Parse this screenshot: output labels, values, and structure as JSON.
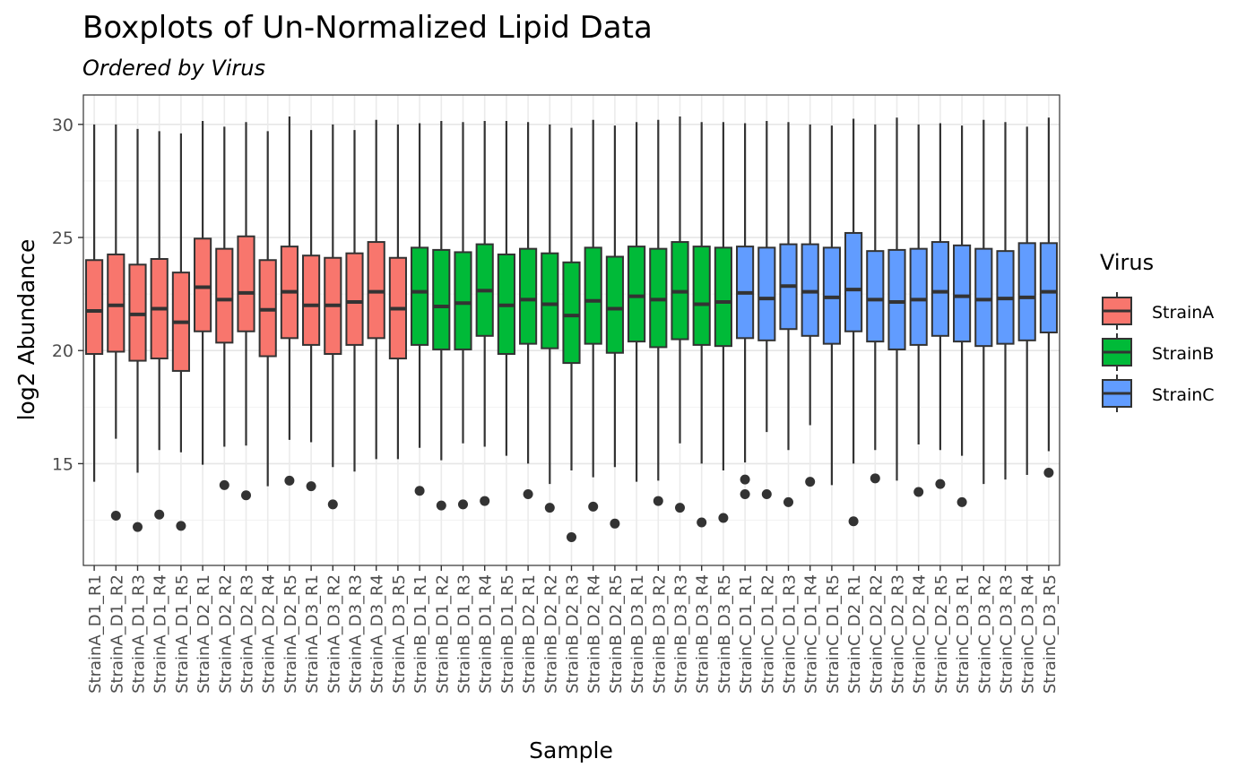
{
  "chart_data": {
    "type": "boxplot",
    "title": "Boxplots of Un-Normalized Lipid Data",
    "subtitle": "Ordered by  Virus",
    "xlabel": "Sample",
    "ylabel": "log2 Abundance",
    "ylim": [
      10.5,
      31.3
    ],
    "y_ticks": [
      15,
      20,
      25,
      30
    ],
    "grid": true,
    "legend": {
      "title": "Virus",
      "position": "right",
      "entries": [
        {
          "name": "StrainA",
          "color": "#F8766D"
        },
        {
          "name": "StrainB",
          "color": "#00BA38"
        },
        {
          "name": "StrainC",
          "color": "#619CFF"
        }
      ]
    },
    "samples": [
      {
        "label": "StrainA_D1_R1",
        "group": "StrainA",
        "whisker_low": 14.2,
        "q1": 19.85,
        "median": 21.75,
        "q3": 24.0,
        "whisker_high": 30.0,
        "outliers": []
      },
      {
        "label": "StrainA_D1_R2",
        "group": "StrainA",
        "whisker_low": 16.1,
        "q1": 19.95,
        "median": 22.0,
        "q3": 24.25,
        "whisker_high": 30.0,
        "outliers": [
          12.7
        ]
      },
      {
        "label": "StrainA_D1_R3",
        "group": "StrainA",
        "whisker_low": 14.6,
        "q1": 19.55,
        "median": 21.6,
        "q3": 23.8,
        "whisker_high": 29.8,
        "outliers": [
          12.2
        ]
      },
      {
        "label": "StrainA_D1_R4",
        "group": "StrainA",
        "whisker_low": 15.6,
        "q1": 19.65,
        "median": 21.85,
        "q3": 24.05,
        "whisker_high": 29.7,
        "outliers": [
          12.75
        ]
      },
      {
        "label": "StrainA_D1_R5",
        "group": "StrainA",
        "whisker_low": 15.5,
        "q1": 19.1,
        "median": 21.25,
        "q3": 23.45,
        "whisker_high": 29.6,
        "outliers": [
          12.25
        ]
      },
      {
        "label": "StrainA_D2_R1",
        "group": "StrainA",
        "whisker_low": 14.95,
        "q1": 20.85,
        "median": 22.8,
        "q3": 24.95,
        "whisker_high": 30.15,
        "outliers": []
      },
      {
        "label": "StrainA_D2_R2",
        "group": "StrainA",
        "whisker_low": 15.75,
        "q1": 20.35,
        "median": 22.25,
        "q3": 24.5,
        "whisker_high": 29.9,
        "outliers": [
          14.05
        ]
      },
      {
        "label": "StrainA_D2_R3",
        "group": "StrainA",
        "whisker_low": 15.8,
        "q1": 20.85,
        "median": 22.55,
        "q3": 25.05,
        "whisker_high": 30.1,
        "outliers": [
          13.6
        ]
      },
      {
        "label": "StrainA_D2_R4",
        "group": "StrainA",
        "whisker_low": 14.0,
        "q1": 19.75,
        "median": 21.8,
        "q3": 24.0,
        "whisker_high": 29.7,
        "outliers": []
      },
      {
        "label": "StrainA_D2_R5",
        "group": "StrainA",
        "whisker_low": 16.05,
        "q1": 20.55,
        "median": 22.6,
        "q3": 24.6,
        "whisker_high": 30.35,
        "outliers": [
          14.25
        ]
      },
      {
        "label": "StrainA_D3_R1",
        "group": "StrainA",
        "whisker_low": 15.95,
        "q1": 20.25,
        "median": 22.0,
        "q3": 24.2,
        "whisker_high": 29.75,
        "outliers": [
          14.0
        ]
      },
      {
        "label": "StrainA_D3_R2",
        "group": "StrainA",
        "whisker_low": 14.85,
        "q1": 19.85,
        "median": 22.0,
        "q3": 24.1,
        "whisker_high": 30.0,
        "outliers": [
          13.2
        ]
      },
      {
        "label": "StrainA_D3_R3",
        "group": "StrainA",
        "whisker_low": 14.65,
        "q1": 20.25,
        "median": 22.15,
        "q3": 24.3,
        "whisker_high": 29.75,
        "outliers": []
      },
      {
        "label": "StrainA_D3_R4",
        "group": "StrainA",
        "whisker_low": 15.2,
        "q1": 20.55,
        "median": 22.6,
        "q3": 24.8,
        "whisker_high": 30.2,
        "outliers": []
      },
      {
        "label": "StrainA_D3_R5",
        "group": "StrainA",
        "whisker_low": 15.2,
        "q1": 19.65,
        "median": 21.85,
        "q3": 24.1,
        "whisker_high": 30.0,
        "outliers": []
      },
      {
        "label": "StrainB_D1_R1",
        "group": "StrainB",
        "whisker_low": 15.7,
        "q1": 20.25,
        "median": 22.6,
        "q3": 24.55,
        "whisker_high": 30.05,
        "outliers": [
          13.8
        ]
      },
      {
        "label": "StrainB_D1_R2",
        "group": "StrainB",
        "whisker_low": 15.15,
        "q1": 20.05,
        "median": 21.95,
        "q3": 24.45,
        "whisker_high": 30.15,
        "outliers": [
          13.15
        ]
      },
      {
        "label": "StrainB_D1_R3",
        "group": "StrainB",
        "whisker_low": 15.9,
        "q1": 20.05,
        "median": 22.1,
        "q3": 24.35,
        "whisker_high": 30.1,
        "outliers": [
          13.2
        ]
      },
      {
        "label": "StrainB_D1_R4",
        "group": "StrainB",
        "whisker_low": 15.75,
        "q1": 20.65,
        "median": 22.65,
        "q3": 24.7,
        "whisker_high": 30.15,
        "outliers": [
          13.35
        ]
      },
      {
        "label": "StrainB_D1_R5",
        "group": "StrainB",
        "whisker_low": 15.35,
        "q1": 19.85,
        "median": 22.0,
        "q3": 24.25,
        "whisker_high": 30.15,
        "outliers": []
      },
      {
        "label": "StrainB_D2_R1",
        "group": "StrainB",
        "whisker_low": 15.0,
        "q1": 20.3,
        "median": 22.25,
        "q3": 24.5,
        "whisker_high": 30.1,
        "outliers": [
          13.65
        ]
      },
      {
        "label": "StrainB_D2_R2",
        "group": "StrainB",
        "whisker_low": 14.1,
        "q1": 20.1,
        "median": 22.05,
        "q3": 24.3,
        "whisker_high": 30.0,
        "outliers": [
          13.05
        ]
      },
      {
        "label": "StrainB_D2_R3",
        "group": "StrainB",
        "whisker_low": 14.7,
        "q1": 19.45,
        "median": 21.55,
        "q3": 23.9,
        "whisker_high": 29.85,
        "outliers": [
          11.75
        ]
      },
      {
        "label": "StrainB_D2_R4",
        "group": "StrainB",
        "whisker_low": 14.4,
        "q1": 20.3,
        "median": 22.2,
        "q3": 24.55,
        "whisker_high": 30.2,
        "outliers": [
          13.1
        ]
      },
      {
        "label": "StrainB_D2_R5",
        "group": "StrainB",
        "whisker_low": 14.85,
        "q1": 19.9,
        "median": 21.85,
        "q3": 24.15,
        "whisker_high": 29.95,
        "outliers": [
          12.35
        ]
      },
      {
        "label": "StrainB_D3_R1",
        "group": "StrainB",
        "whisker_low": 14.2,
        "q1": 20.4,
        "median": 22.4,
        "q3": 24.6,
        "whisker_high": 30.1,
        "outliers": []
      },
      {
        "label": "StrainB_D3_R2",
        "group": "StrainB",
        "whisker_low": 14.25,
        "q1": 20.15,
        "median": 22.25,
        "q3": 24.5,
        "whisker_high": 30.2,
        "outliers": [
          13.35
        ]
      },
      {
        "label": "StrainB_D3_R3",
        "group": "StrainB",
        "whisker_low": 15.9,
        "q1": 20.5,
        "median": 22.6,
        "q3": 24.8,
        "whisker_high": 30.35,
        "outliers": [
          13.05
        ]
      },
      {
        "label": "StrainB_D3_R4",
        "group": "StrainB",
        "whisker_low": 15.0,
        "q1": 20.25,
        "median": 22.05,
        "q3": 24.6,
        "whisker_high": 30.1,
        "outliers": [
          12.4
        ]
      },
      {
        "label": "StrainB_D3_R5",
        "group": "StrainB",
        "whisker_low": 14.7,
        "q1": 20.2,
        "median": 22.15,
        "q3": 24.55,
        "whisker_high": 30.1,
        "outliers": [
          12.6
        ]
      },
      {
        "label": "StrainC_D1_R1",
        "group": "StrainC",
        "whisker_low": 15.05,
        "q1": 20.55,
        "median": 22.55,
        "q3": 24.6,
        "whisker_high": 30.05,
        "outliers": [
          14.3,
          13.65
        ]
      },
      {
        "label": "StrainC_D1_R2",
        "group": "StrainC",
        "whisker_low": 16.4,
        "q1": 20.45,
        "median": 22.3,
        "q3": 24.55,
        "whisker_high": 30.15,
        "outliers": [
          13.65
        ]
      },
      {
        "label": "StrainC_D1_R3",
        "group": "StrainC",
        "whisker_low": 15.6,
        "q1": 20.95,
        "median": 22.85,
        "q3": 24.7,
        "whisker_high": 30.1,
        "outliers": [
          13.3
        ]
      },
      {
        "label": "StrainC_D1_R4",
        "group": "StrainC",
        "whisker_low": 16.7,
        "q1": 20.65,
        "median": 22.6,
        "q3": 24.7,
        "whisker_high": 30.0,
        "outliers": [
          14.2
        ]
      },
      {
        "label": "StrainC_D1_R5",
        "group": "StrainC",
        "whisker_low": 14.05,
        "q1": 20.3,
        "median": 22.35,
        "q3": 24.55,
        "whisker_high": 29.95,
        "outliers": []
      },
      {
        "label": "StrainC_D2_R1",
        "group": "StrainC",
        "whisker_low": 15.0,
        "q1": 20.85,
        "median": 22.7,
        "q3": 25.2,
        "whisker_high": 30.25,
        "outliers": [
          12.45
        ]
      },
      {
        "label": "StrainC_D2_R2",
        "group": "StrainC",
        "whisker_low": 15.6,
        "q1": 20.4,
        "median": 22.25,
        "q3": 24.4,
        "whisker_high": 30.0,
        "outliers": [
          14.35
        ]
      },
      {
        "label": "StrainC_D2_R3",
        "group": "StrainC",
        "whisker_low": 14.25,
        "q1": 20.05,
        "median": 22.15,
        "q3": 24.45,
        "whisker_high": 30.3,
        "outliers": []
      },
      {
        "label": "StrainC_D2_R4",
        "group": "StrainC",
        "whisker_low": 15.85,
        "q1": 20.25,
        "median": 22.25,
        "q3": 24.5,
        "whisker_high": 30.0,
        "outliers": [
          13.75
        ]
      },
      {
        "label": "StrainC_D2_R5",
        "group": "StrainC",
        "whisker_low": 15.6,
        "q1": 20.65,
        "median": 22.6,
        "q3": 24.8,
        "whisker_high": 30.05,
        "outliers": [
          14.1
        ]
      },
      {
        "label": "StrainC_D3_R1",
        "group": "StrainC",
        "whisker_low": 15.35,
        "q1": 20.4,
        "median": 22.4,
        "q3": 24.65,
        "whisker_high": 29.95,
        "outliers": [
          13.3
        ]
      },
      {
        "label": "StrainC_D3_R2",
        "group": "StrainC",
        "whisker_low": 14.1,
        "q1": 20.2,
        "median": 22.25,
        "q3": 24.5,
        "whisker_high": 30.2,
        "outliers": []
      },
      {
        "label": "StrainC_D3_R3",
        "group": "StrainC",
        "whisker_low": 14.3,
        "q1": 20.3,
        "median": 22.3,
        "q3": 24.4,
        "whisker_high": 30.1,
        "outliers": []
      },
      {
        "label": "StrainC_D3_R4",
        "group": "StrainC",
        "whisker_low": 14.5,
        "q1": 20.45,
        "median": 22.35,
        "q3": 24.75,
        "whisker_high": 29.9,
        "outliers": []
      },
      {
        "label": "StrainC_D3_R5",
        "group": "StrainC",
        "whisker_low": 15.55,
        "q1": 20.8,
        "median": 22.6,
        "q3": 24.75,
        "whisker_high": 30.3,
        "outliers": [
          14.6
        ]
      }
    ]
  }
}
